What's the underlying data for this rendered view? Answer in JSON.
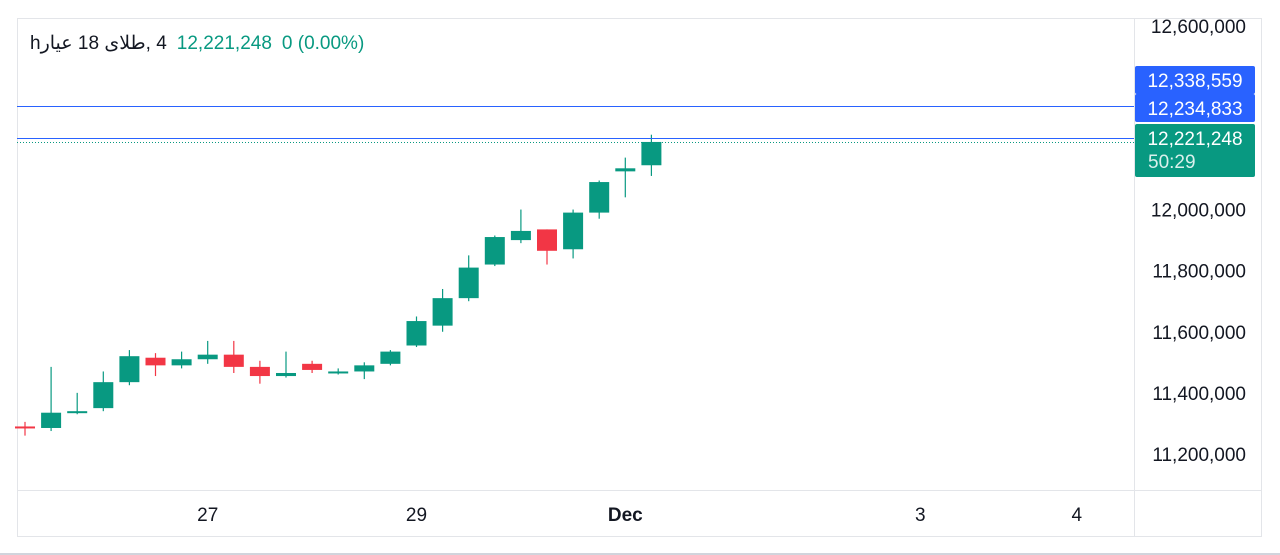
{
  "legend": {
    "symbol": "4 ,طلای 18 عیار",
    "interval": "h",
    "price": "12,221,248",
    "change": "0",
    "change_pct": "(0.00%)"
  },
  "colors": {
    "up": "#089981",
    "down": "#f23645",
    "line": "#2962ff",
    "grid": "#e3e5e9",
    "text": "#131722"
  },
  "chart_data": {
    "type": "candlestick",
    "y_range": [
      11082000,
      12627000
    ],
    "y_ticks": [
      {
        "value": 12600000,
        "label": "12,600,000"
      },
      {
        "value": 12000000,
        "label": "12,000,000"
      },
      {
        "value": 11800000,
        "label": "11,800,000"
      },
      {
        "value": 11600000,
        "label": "11,600,000"
      },
      {
        "value": 11400000,
        "label": "11,400,000"
      },
      {
        "value": 11200000,
        "label": "11,200,000"
      }
    ],
    "x_ticks": [
      {
        "index": 7,
        "label": "27"
      },
      {
        "index": 15,
        "label": "29"
      },
      {
        "index": 23,
        "label": "Dec"
      },
      {
        "index": 34.3,
        "label": "3"
      },
      {
        "index": 40.3,
        "label": "4"
      }
    ],
    "horizontal_lines": [
      {
        "value": 12338559,
        "label": "12,338,559",
        "style": "solid"
      },
      {
        "value": 12234833,
        "label": "12,234,833",
        "style": "solid"
      },
      {
        "value": 12221248,
        "label": "12,221,248",
        "style": "dotted"
      }
    ],
    "last_price": {
      "value": 12221248,
      "label": "12,221,248",
      "countdown": "50:29"
    },
    "candles": [
      {
        "o": 11290000,
        "h": 11305000,
        "l": 11260000,
        "c": 11285000
      },
      {
        "o": 11285000,
        "h": 11485000,
        "l": 11275000,
        "c": 11335000
      },
      {
        "o": 11335000,
        "h": 11400000,
        "l": 11330000,
        "c": 11340000
      },
      {
        "o": 11350000,
        "h": 11470000,
        "l": 11340000,
        "c": 11435000
      },
      {
        "o": 11435000,
        "h": 11540000,
        "l": 11425000,
        "c": 11520000
      },
      {
        "o": 11515000,
        "h": 11530000,
        "l": 11455000,
        "c": 11490000
      },
      {
        "o": 11490000,
        "h": 11535000,
        "l": 11480000,
        "c": 11510000
      },
      {
        "o": 11510000,
        "h": 11570000,
        "l": 11495000,
        "c": 11525000
      },
      {
        "o": 11525000,
        "h": 11570000,
        "l": 11465000,
        "c": 11485000
      },
      {
        "o": 11485000,
        "h": 11505000,
        "l": 11430000,
        "c": 11455000
      },
      {
        "o": 11455000,
        "h": 11535000,
        "l": 11450000,
        "c": 11465000
      },
      {
        "o": 11495000,
        "h": 11505000,
        "l": 11465000,
        "c": 11475000
      },
      {
        "o": 11465000,
        "h": 11480000,
        "l": 11460000,
        "c": 11470000
      },
      {
        "o": 11470000,
        "h": 11500000,
        "l": 11445000,
        "c": 11490000
      },
      {
        "o": 11495000,
        "h": 11540000,
        "l": 11490000,
        "c": 11535000
      },
      {
        "o": 11555000,
        "h": 11650000,
        "l": 11550000,
        "c": 11635000
      },
      {
        "o": 11620000,
        "h": 11740000,
        "l": 11600000,
        "c": 11710000
      },
      {
        "o": 11710000,
        "h": 11850000,
        "l": 11700000,
        "c": 11810000
      },
      {
        "o": 11820000,
        "h": 11915000,
        "l": 11815000,
        "c": 11910000
      },
      {
        "o": 11900000,
        "h": 12000000,
        "l": 11890000,
        "c": 11930000
      },
      {
        "o": 11935000,
        "h": 11935000,
        "l": 11820000,
        "c": 11865000
      },
      {
        "o": 11870000,
        "h": 12000000,
        "l": 11840000,
        "c": 11990000
      },
      {
        "o": 11990000,
        "h": 12095000,
        "l": 11970000,
        "c": 12090000
      },
      {
        "o": 12125000,
        "h": 12170000,
        "l": 12040000,
        "c": 12135000
      },
      {
        "o": 12145000,
        "h": 12245000,
        "l": 12110000,
        "c": 12221248
      }
    ]
  }
}
